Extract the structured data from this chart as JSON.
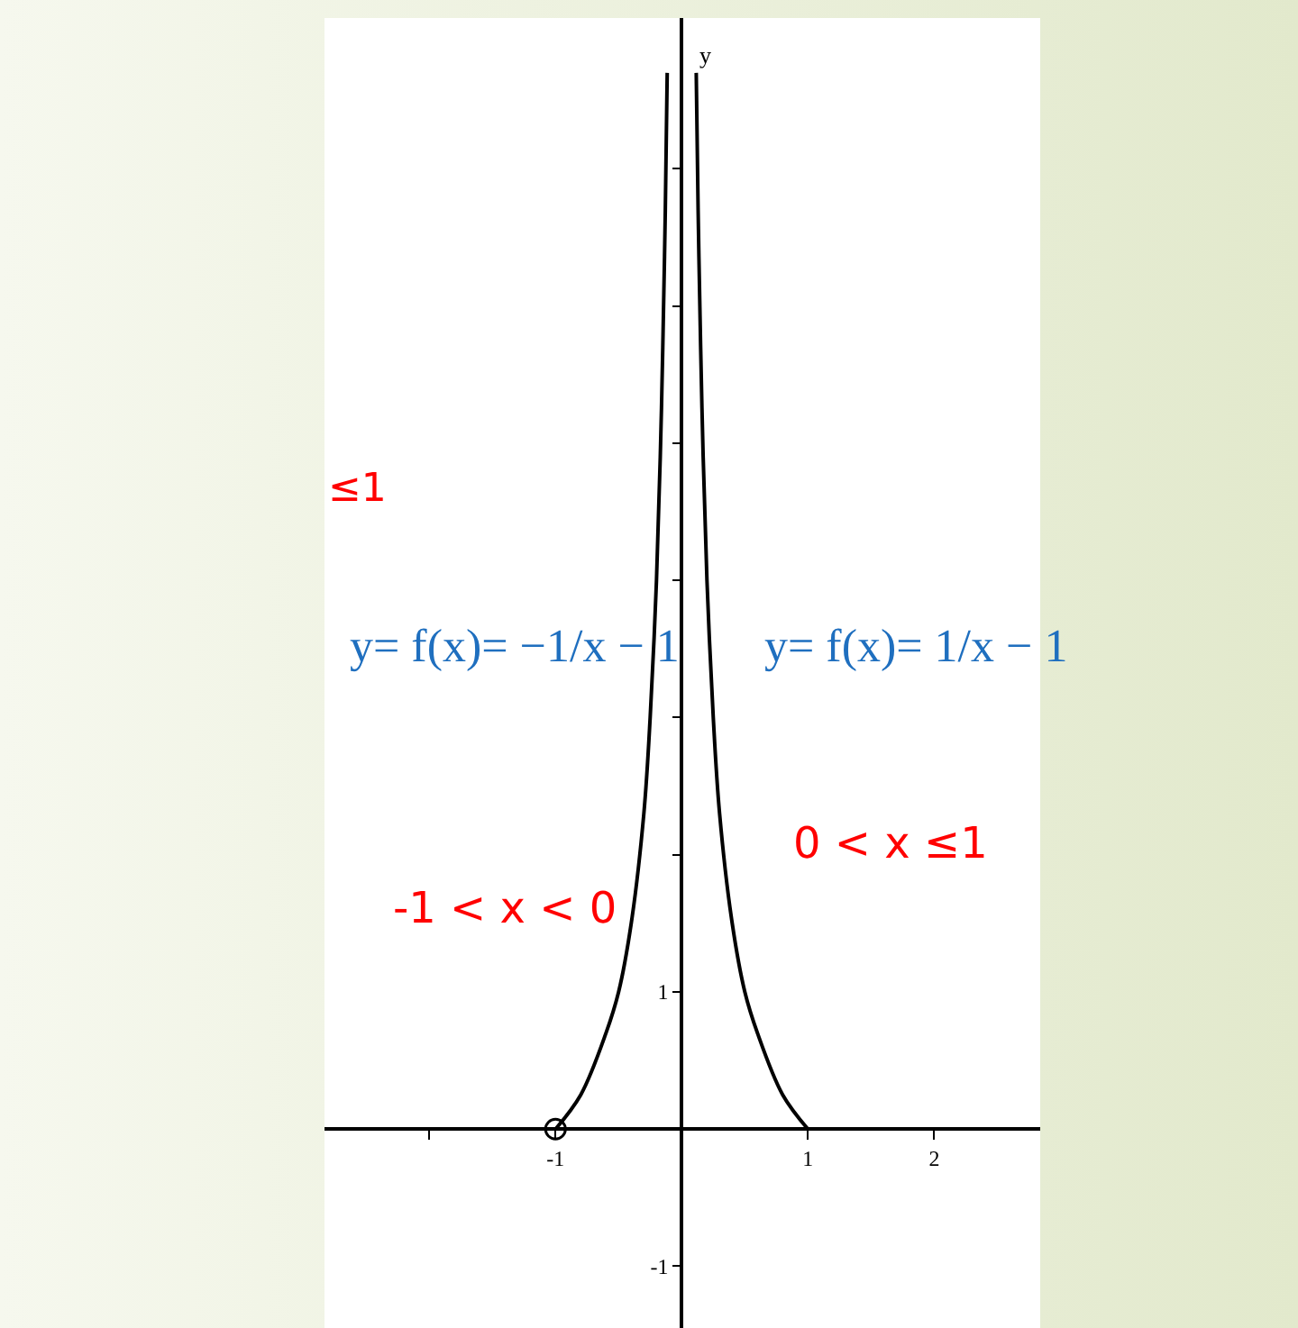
{
  "chart_data": {
    "type": "line",
    "ylabel": "y",
    "annotations": [
      "≤1",
      "y= f(x)= −1/x − 1",
      "y= f(x)= 1/x − 1",
      "-1 < x < 0",
      "0 < x ≤1"
    ],
    "series": [
      {
        "color": "#000000",
        "x": [
          -1,
          -0.8,
          -0.6,
          -0.5,
          -0.4,
          -0.3,
          -0.25,
          -0.2,
          -0.17,
          -0.15,
          -0.13,
          -0.115
        ],
        "values": [
          0,
          0.25,
          0.7,
          1,
          1.5,
          2.3,
          3,
          4,
          4.9,
          5.7,
          6.7,
          7.7
        ]
      },
      {
        "color": "#000000",
        "x": [
          1,
          0.8,
          0.6,
          0.5,
          0.4,
          0.3,
          0.25,
          0.2,
          0.17,
          0.15,
          0.13,
          0.115
        ],
        "values": [
          0,
          0.25,
          0.7,
          1,
          1.5,
          2.3,
          3,
          4,
          4.9,
          5.7,
          6.7,
          7.7
        ]
      },
      {
        "type": "scatter",
        "marker": "circle",
        "color": "#000000",
        "x": [
          -1
        ],
        "values": [
          0
        ]
      }
    ],
    "xlim": [
      -2.83,
      2.84
    ],
    "ylim": [
      -1.45,
      8.1
    ],
    "xticks": [
      {
        "value": -2,
        "label": null
      },
      -1,
      1,
      2
    ],
    "yticks": [
      -1,
      1,
      {
        "value": 2,
        "label": null
      },
      {
        "value": 3,
        "label": null
      },
      {
        "value": 4,
        "label": null
      },
      {
        "value": 5,
        "label": null
      },
      {
        "value": 6,
        "label": null
      },
      {
        "value": 7,
        "label": null
      }
    ]
  }
}
